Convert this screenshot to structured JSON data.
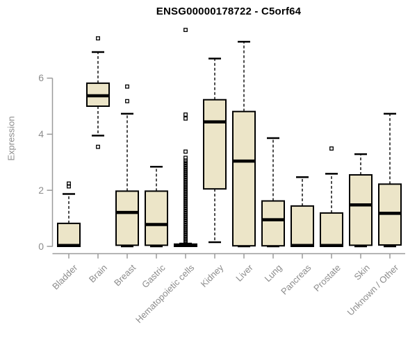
{
  "chart_data": {
    "type": "boxplot",
    "title": "ENSG00000178722 - C5orf64",
    "ylabel": "Expression",
    "xlabel": "",
    "y_ticks": [
      0,
      2,
      4,
      6
    ],
    "ylim": [
      0,
      7.8
    ],
    "grid": false,
    "legend": "none",
    "colors": {
      "box_fill": "#ece5c8",
      "box_border": "#000000",
      "median": "#000000",
      "whisker": "#000000",
      "outlier": "#000000",
      "axis": "#9a9a9a",
      "tick_text": "#8c8c8c",
      "title_text": "#000000",
      "background": "#ffffff"
    },
    "categories": [
      "Bladder",
      "Brain",
      "Breast",
      "Gastric",
      "Hematopoietic cells",
      "Kidney",
      "Liver",
      "Lung",
      "Pancreas",
      "Prostate",
      "Skin",
      "Unknown / Other"
    ],
    "boxes": [
      {
        "category": "Bladder",
        "whisker_low": 0,
        "q1": 0,
        "median": 0.03,
        "q3": 0.82,
        "whisker_high": 1.87,
        "outliers": [
          2.14,
          2.24
        ]
      },
      {
        "category": "Brain",
        "whisker_low": 3.95,
        "q1": 5.0,
        "median": 5.37,
        "q3": 5.82,
        "whisker_high": 6.93,
        "outliers": [
          3.55,
          7.42
        ]
      },
      {
        "category": "Breast",
        "whisker_low": 0,
        "q1": 0.04,
        "median": 1.21,
        "q3": 1.97,
        "whisker_high": 4.73,
        "outliers": [
          5.18,
          5.7
        ]
      },
      {
        "category": "Gastric",
        "whisker_low": 0,
        "q1": 0.04,
        "median": 0.78,
        "q3": 1.97,
        "whisker_high": 2.84,
        "outliers": []
      },
      {
        "category": "Hematopoietic cells",
        "whisker_low": 0,
        "q1": 0,
        "median": 0.03,
        "q3": 0.08,
        "whisker_high": 0.1,
        "outliers": [
          0.12,
          0.19,
          0.26,
          0.33,
          0.4,
          0.47,
          0.54,
          0.61,
          0.68,
          0.75,
          0.82,
          0.89,
          0.96,
          1.03,
          1.1,
          1.17,
          1.24,
          1.31,
          1.38,
          1.45,
          1.52,
          1.59,
          1.66,
          1.73,
          1.8,
          1.87,
          1.94,
          2.01,
          2.08,
          2.15,
          2.22,
          2.29,
          2.36,
          2.43,
          2.5,
          2.57,
          2.64,
          2.71,
          2.78,
          2.85,
          2.92,
          2.99,
          3.06,
          3.16,
          3.38,
          4.56,
          4.7,
          7.72
        ]
      },
      {
        "category": "Kidney",
        "whisker_low": 0.15,
        "q1": 2.05,
        "median": 4.44,
        "q3": 5.23,
        "whisker_high": 6.7,
        "outliers": []
      },
      {
        "category": "Liver",
        "whisker_low": 0,
        "q1": 0.02,
        "median": 3.04,
        "q3": 4.81,
        "whisker_high": 7.3,
        "outliers": []
      },
      {
        "category": "Lung",
        "whisker_low": 0,
        "q1": 0.02,
        "median": 0.95,
        "q3": 1.62,
        "whisker_high": 3.86,
        "outliers": []
      },
      {
        "category": "Pancreas",
        "whisker_low": 0,
        "q1": 0,
        "median": 0.03,
        "q3": 1.44,
        "whisker_high": 2.47,
        "outliers": []
      },
      {
        "category": "Prostate",
        "whisker_low": 0,
        "q1": 0,
        "median": 0.03,
        "q3": 1.19,
        "whisker_high": 2.59,
        "outliers": [
          3.49
        ]
      },
      {
        "category": "Skin",
        "whisker_low": 0,
        "q1": 0.04,
        "median": 1.48,
        "q3": 2.55,
        "whisker_high": 3.29,
        "outliers": []
      },
      {
        "category": "Unknown / Other",
        "whisker_low": 0,
        "q1": 0.05,
        "median": 1.18,
        "q3": 2.22,
        "whisker_high": 4.73,
        "outliers": []
      }
    ]
  }
}
